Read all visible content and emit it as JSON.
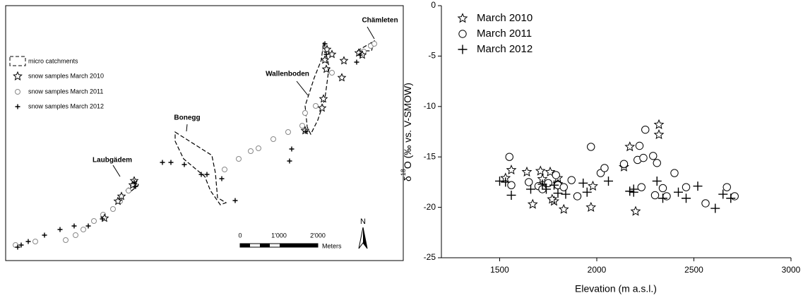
{
  "map": {
    "legend": [
      "micro catchments",
      "snow samples March 2010",
      "snow samples March 2011",
      "snow samples March 2012"
    ],
    "places": [
      "Chämleten",
      "Wallenboden",
      "Bonegg",
      "Laubgädem"
    ],
    "scale_labels": [
      "0",
      "1'000",
      "2'000"
    ],
    "scale_unit": "Meters",
    "north": "N"
  },
  "chart_data": {
    "type": "scatter",
    "x_label": "Elevation (m a.s.l.)",
    "y_label": {
      "prefix": "δ",
      "sup": "18",
      "suffix": "O (‰ vs. V-SMOW)"
    },
    "xlim": [
      1200,
      3000
    ],
    "xticks": [
      1500,
      2000,
      2500,
      3000
    ],
    "ylim": [
      -25,
      0
    ],
    "yticks": [
      -25,
      -20,
      -15,
      -10,
      -5,
      0
    ],
    "legend_position": "upper left",
    "series": [
      {
        "name": "March 2010",
        "marker": "star",
        "color": "#000000",
        "x": [
          1560,
          1530,
          1640,
          1670,
          1710,
          1720,
          1760,
          1780,
          1770,
          1800,
          1830,
          1980,
          1970,
          2140,
          2170,
          2200,
          2320,
          2320,
          1800,
          1720
        ],
        "values": [
          -16.3,
          -17.1,
          -16.5,
          -19.7,
          -16.4,
          -17.2,
          -16.5,
          -19.4,
          -19.2,
          -17.1,
          -20.2,
          -17.9,
          -20.0,
          -16.0,
          -14.0,
          -20.4,
          -11.8,
          -12.8,
          -17.7,
          -18.0
        ]
      },
      {
        "name": "March 2011",
        "marker": "circle",
        "color": "#000000",
        "x": [
          1550,
          1560,
          1650,
          1700,
          1720,
          1750,
          1790,
          1800,
          1830,
          1870,
          1900,
          1970,
          2020,
          2040,
          2140,
          2210,
          2220,
          2240,
          2250,
          2290,
          2300,
          2310,
          2340,
          2360,
          2400,
          2460,
          2560,
          2670,
          2710,
          2230
        ],
        "values": [
          -15.0,
          -17.8,
          -17.5,
          -17.9,
          -18.2,
          -17.6,
          -16.8,
          -17.8,
          -18.0,
          -17.3,
          -18.9,
          -14.0,
          -16.6,
          -16.1,
          -15.7,
          -15.3,
          -13.9,
          -15.1,
          -12.3,
          -14.9,
          -18.8,
          -15.6,
          -18.1,
          -18.9,
          -16.6,
          -18.0,
          -19.6,
          -18.0,
          -18.9,
          -18.0
        ]
      },
      {
        "name": "March 2012",
        "marker": "plus",
        "color": "#000000",
        "x": [
          1500,
          1530,
          1560,
          1660,
          1720,
          1740,
          1780,
          1800,
          1840,
          1930,
          1950,
          2060,
          2170,
          2190,
          2190,
          2310,
          2340,
          2420,
          2460,
          2520,
          2610,
          2650,
          2690
        ],
        "values": [
          -17.4,
          -17.5,
          -18.8,
          -18.2,
          -17.7,
          -18.2,
          -17.8,
          -18.6,
          -18.7,
          -17.6,
          -18.5,
          -17.4,
          -18.4,
          -18.2,
          -18.5,
          -17.4,
          -19.1,
          -18.5,
          -19.1,
          -17.9,
          -20.1,
          -18.7,
          -19.1
        ]
      }
    ]
  }
}
